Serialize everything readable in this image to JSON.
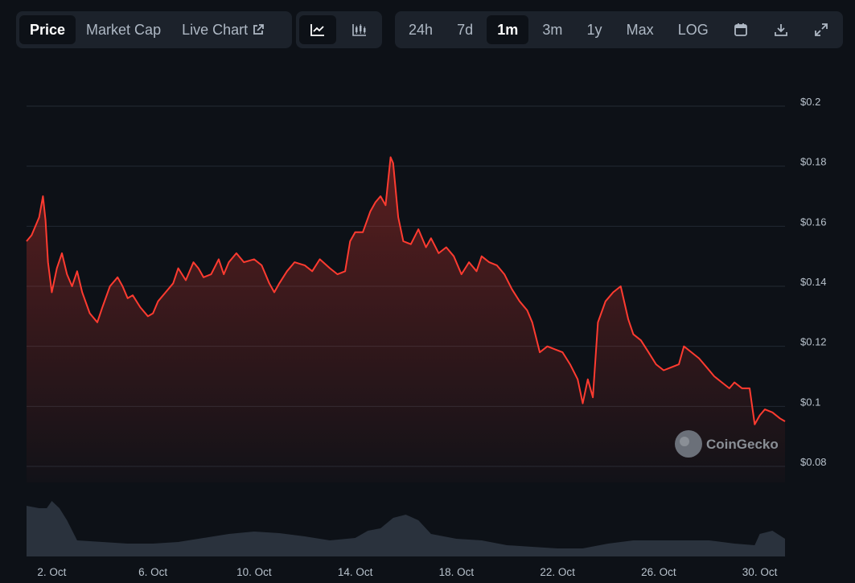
{
  "tabs": [
    {
      "label": "Price",
      "active": true
    },
    {
      "label": "Market Cap",
      "active": false
    },
    {
      "label": "Live Chart",
      "active": false
    }
  ],
  "chart_types": [
    {
      "icon": "line-chart-icon",
      "active": true
    },
    {
      "icon": "candlestick-chart-icon",
      "active": false
    }
  ],
  "ranges": [
    {
      "label": "24h",
      "active": false
    },
    {
      "label": "7d",
      "active": false
    },
    {
      "label": "1m",
      "active": true
    },
    {
      "label": "3m",
      "active": false
    },
    {
      "label": "1y",
      "active": false
    },
    {
      "label": "Max",
      "active": false
    },
    {
      "label": "LOG",
      "active": false
    }
  ],
  "tools": [
    {
      "icon": "calendar-icon"
    },
    {
      "icon": "download-icon"
    },
    {
      "icon": "expand-icon"
    }
  ],
  "watermark": "CoinGecko",
  "colors": {
    "line": "#ff3b30",
    "background": "#0d1117",
    "volume": "#2a323d",
    "grid": "#222a33"
  },
  "chart_data": {
    "type": "area",
    "x_tick_labels": [
      "2. Oct",
      "6. Oct",
      "10. Oct",
      "14. Oct",
      "18. Oct",
      "22. Oct",
      "26. Oct",
      "30. Oct"
    ],
    "x_tick_days": [
      2,
      6,
      10,
      14,
      18,
      22,
      26,
      30
    ],
    "x_range_days": [
      1,
      31
    ],
    "y_tick_labels": [
      "$0.08",
      "$0.1",
      "$0.12",
      "$0.14",
      "$0.16",
      "$0.18",
      "$0.2"
    ],
    "y_ticks": [
      0.08,
      0.1,
      0.12,
      0.14,
      0.16,
      0.18,
      0.2
    ],
    "ylim": [
      0.08,
      0.2
    ],
    "grid": true,
    "price_series": {
      "x_day": [
        1.0,
        1.2,
        1.5,
        1.65,
        1.75,
        1.85,
        2.0,
        2.2,
        2.4,
        2.6,
        2.8,
        3.0,
        3.2,
        3.5,
        3.8,
        4.0,
        4.3,
        4.6,
        4.8,
        5.0,
        5.2,
        5.5,
        5.8,
        6.0,
        6.2,
        6.5,
        6.8,
        7.0,
        7.3,
        7.6,
        7.8,
        8.0,
        8.3,
        8.6,
        8.8,
        9.0,
        9.3,
        9.6,
        10.0,
        10.3,
        10.6,
        10.8,
        11.0,
        11.3,
        11.6,
        12.0,
        12.3,
        12.6,
        13.0,
        13.3,
        13.6,
        13.8,
        14.0,
        14.3,
        14.6,
        14.8,
        15.0,
        15.2,
        15.4,
        15.5,
        15.7,
        15.9,
        16.2,
        16.5,
        16.8,
        17.0,
        17.3,
        17.6,
        17.9,
        18.2,
        18.5,
        18.8,
        19.0,
        19.3,
        19.6,
        19.9,
        20.2,
        20.5,
        20.8,
        21.0,
        21.3,
        21.6,
        21.9,
        22.2,
        22.5,
        22.8,
        23.0,
        23.2,
        23.4,
        23.6,
        23.9,
        24.2,
        24.5,
        24.8,
        25.0,
        25.3,
        25.6,
        25.9,
        26.2,
        26.5,
        26.8,
        27.0,
        27.3,
        27.6,
        27.9,
        28.2,
        28.5,
        28.8,
        29.0,
        29.3,
        29.6,
        29.8,
        30.0,
        30.2,
        30.5,
        30.8,
        31.0
      ],
      "price": [
        0.155,
        0.157,
        0.163,
        0.17,
        0.162,
        0.148,
        0.138,
        0.146,
        0.151,
        0.144,
        0.14,
        0.145,
        0.138,
        0.131,
        0.128,
        0.133,
        0.14,
        0.143,
        0.14,
        0.136,
        0.137,
        0.133,
        0.13,
        0.131,
        0.135,
        0.138,
        0.141,
        0.146,
        0.142,
        0.148,
        0.146,
        0.143,
        0.144,
        0.149,
        0.144,
        0.148,
        0.151,
        0.148,
        0.149,
        0.147,
        0.141,
        0.138,
        0.141,
        0.145,
        0.148,
        0.147,
        0.145,
        0.149,
        0.146,
        0.144,
        0.145,
        0.155,
        0.158,
        0.158,
        0.165,
        0.168,
        0.17,
        0.167,
        0.183,
        0.181,
        0.163,
        0.155,
        0.154,
        0.159,
        0.153,
        0.156,
        0.151,
        0.153,
        0.15,
        0.144,
        0.148,
        0.145,
        0.15,
        0.148,
        0.147,
        0.144,
        0.139,
        0.135,
        0.132,
        0.128,
        0.118,
        0.12,
        0.119,
        0.118,
        0.114,
        0.109,
        0.101,
        0.109,
        0.103,
        0.128,
        0.135,
        0.138,
        0.14,
        0.129,
        0.124,
        0.122,
        0.118,
        0.114,
        0.112,
        0.113,
        0.114,
        0.12,
        0.118,
        0.116,
        0.113,
        0.11,
        0.108,
        0.106,
        0.108,
        0.106,
        0.106,
        0.094,
        0.097,
        0.099,
        0.098,
        0.096,
        0.095
      ]
    },
    "volume_series": {
      "x_day": [
        1.0,
        1.5,
        1.8,
        2.0,
        2.3,
        2.6,
        3.0,
        4.0,
        5.0,
        6.0,
        7.0,
        8.0,
        9.0,
        10.0,
        11.0,
        12.0,
        13.0,
        14.0,
        14.5,
        15.0,
        15.5,
        16.0,
        16.5,
        17.0,
        18.0,
        19.0,
        20.0,
        21.0,
        22.0,
        23.0,
        24.0,
        25.0,
        26.0,
        27.0,
        28.0,
        29.0,
        29.8,
        30.0,
        30.5,
        31.0
      ],
      "volume_relative": [
        0.63,
        0.6,
        0.6,
        0.69,
        0.6,
        0.45,
        0.2,
        0.18,
        0.16,
        0.16,
        0.18,
        0.23,
        0.28,
        0.31,
        0.29,
        0.25,
        0.2,
        0.23,
        0.32,
        0.35,
        0.48,
        0.52,
        0.45,
        0.28,
        0.22,
        0.2,
        0.14,
        0.12,
        0.1,
        0.1,
        0.16,
        0.2,
        0.2,
        0.2,
        0.2,
        0.16,
        0.14,
        0.28,
        0.32,
        0.22
      ]
    }
  }
}
